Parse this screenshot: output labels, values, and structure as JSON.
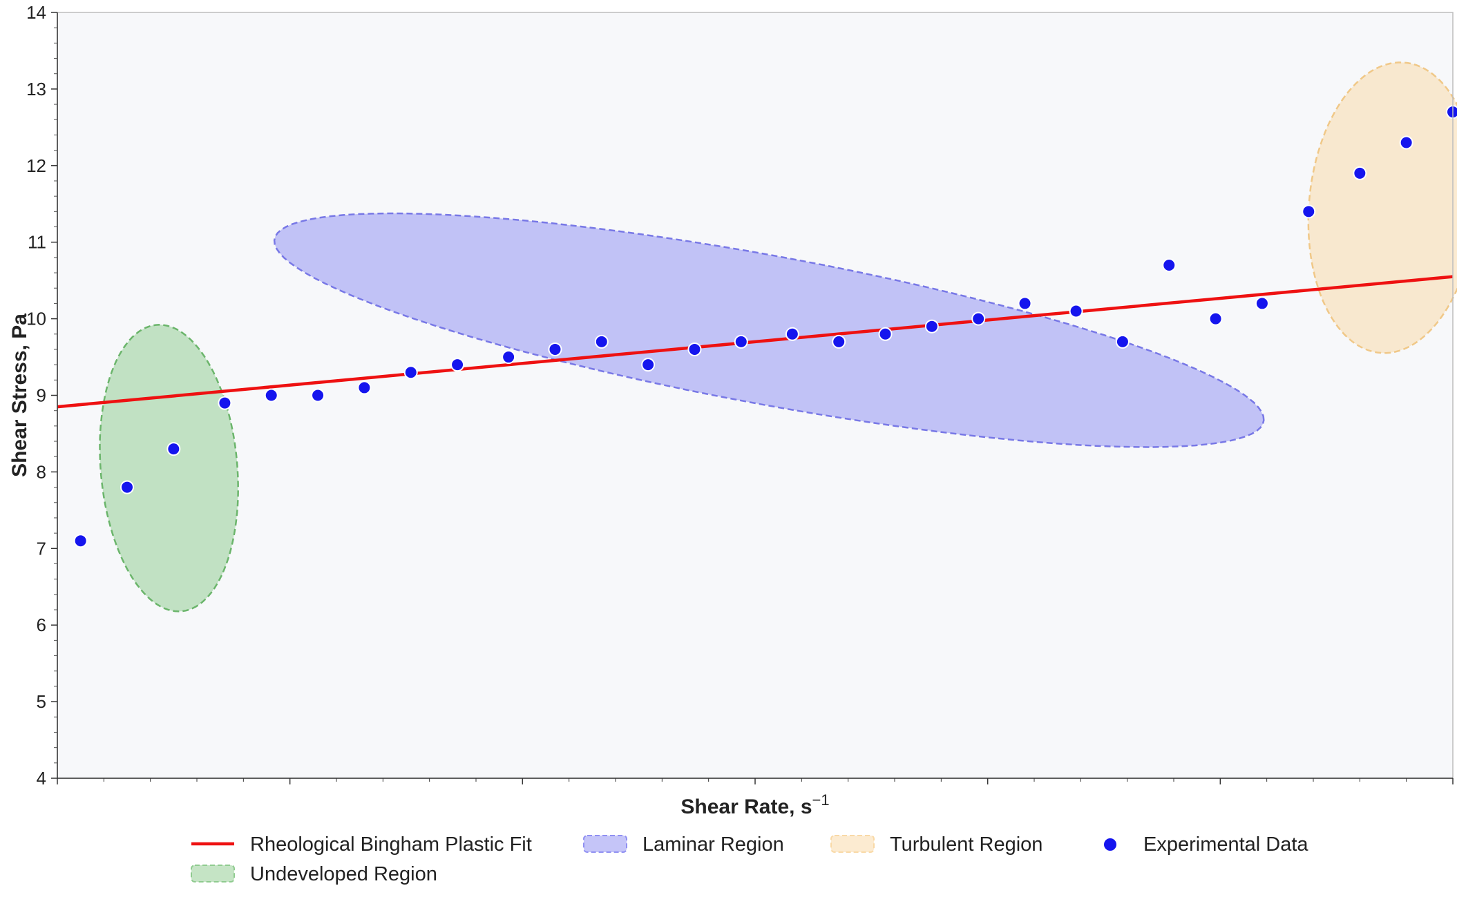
{
  "chart_data": {
    "type": "scatter",
    "title": "",
    "xlabel": "Shear Rate, s",
    "xlabel_superscript": "−1",
    "ylabel": "Shear Stress, Pa",
    "xlim": [
      0,
      30
    ],
    "ylim": [
      4,
      14
    ],
    "y_ticks": [
      4,
      5,
      6,
      7,
      8,
      9,
      10,
      11,
      12,
      13,
      14
    ],
    "x_tick_labels_shown": false,
    "grid": false,
    "legend_position": "bottom-center",
    "series": [
      {
        "name": "Experimental Data",
        "kind": "scatter",
        "color": "#1515ee",
        "x": [
          0.5,
          1.5,
          2.5,
          3.6,
          4.6,
          5.6,
          6.6,
          7.6,
          8.6,
          9.7,
          10.7,
          11.7,
          12.7,
          13.7,
          14.7,
          15.8,
          16.8,
          17.8,
          18.8,
          19.8,
          20.8,
          21.9,
          22.9,
          23.9,
          24.9,
          25.9,
          26.9,
          28.0,
          29.0,
          30.0
        ],
        "y": [
          7.1,
          7.8,
          8.3,
          8.9,
          9.0,
          9.0,
          9.1,
          9.3,
          9.4,
          9.5,
          9.6,
          9.7,
          9.4,
          9.6,
          9.7,
          9.8,
          9.7,
          9.8,
          9.9,
          10.0,
          10.2,
          10.1,
          9.7,
          10.7,
          10.0,
          10.2,
          11.4,
          11.9,
          12.3,
          12.7
        ]
      },
      {
        "name": "Rheological Bingham Plastic Fit",
        "kind": "line",
        "color": "#ee1111",
        "x": [
          0,
          30
        ],
        "y": [
          8.85,
          10.55
        ]
      }
    ],
    "regions": [
      {
        "name": "Undeveloped Region",
        "fill": "#8fcb8f",
        "stroke": "#6bb56b",
        "center": [
          2.4,
          8.05
        ],
        "rx": 1.9,
        "ry": 1.45,
        "angle": -1.3
      },
      {
        "name": "Laminar Region",
        "fill": "#9090f2",
        "stroke": "#7878e6",
        "center": [
          15.3,
          9.85
        ],
        "rx": 10.7,
        "ry": 0.98,
        "angle": -0.11
      },
      {
        "name": "Turbulent Region",
        "fill": "#f9d9a6",
        "stroke": "#f0c888",
        "center": [
          28.7,
          11.45
        ],
        "rx": 1.75,
        "ry": 1.95,
        "angle": -0.55
      }
    ],
    "legend": [
      {
        "label": "Rheological Bingham Plastic Fit",
        "type": "line",
        "color": "#ee1111"
      },
      {
        "label": "Laminar Region",
        "type": "patch",
        "color": "#9090f2"
      },
      {
        "label": "Turbulent Region",
        "type": "patch",
        "color": "#f9d9a6"
      },
      {
        "label": "Experimental Data",
        "type": "marker",
        "color": "#1515ee"
      },
      {
        "label": "Undeveloped Region",
        "type": "patch",
        "color": "#8fcb8f"
      }
    ]
  }
}
